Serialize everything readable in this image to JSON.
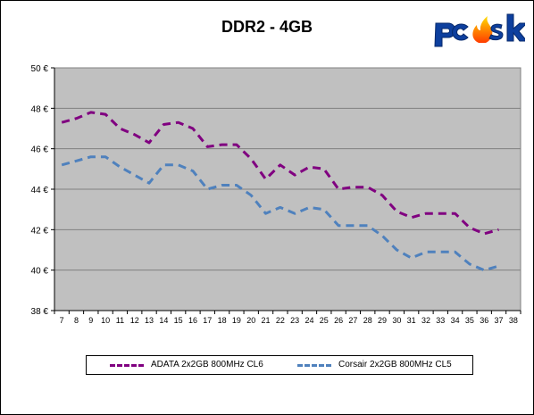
{
  "chart_data": {
    "type": "line",
    "title": "DDR2 - 4GB",
    "xlabel": "",
    "ylabel": "",
    "x": [
      7,
      8,
      9,
      10,
      11,
      12,
      13,
      14,
      15,
      16,
      17,
      18,
      19,
      20,
      21,
      22,
      23,
      24,
      25,
      26,
      27,
      28,
      29,
      30,
      31,
      32,
      33,
      34,
      35,
      36,
      37,
      38
    ],
    "ylim": [
      38,
      50
    ],
    "yticks": [
      "38 €",
      "40 €",
      "42 €",
      "44 €",
      "46 €",
      "48 €",
      "50 €"
    ],
    "ytick_values": [
      38,
      40,
      42,
      44,
      46,
      48,
      50
    ],
    "grid": true,
    "legend_position": "bottom",
    "series": [
      {
        "name": "ADATA 2x2GB 800MHz CL6",
        "color": "#800080",
        "values": [
          47.3,
          47.5,
          47.8,
          47.7,
          47.0,
          46.7,
          46.3,
          47.2,
          47.3,
          47.0,
          46.1,
          46.2,
          46.2,
          45.5,
          44.5,
          45.2,
          44.7,
          45.1,
          45.0,
          44.0,
          44.1,
          44.1,
          43.7,
          42.9,
          42.6,
          42.8,
          42.8,
          42.8,
          42.1,
          41.8,
          42.0,
          null
        ]
      },
      {
        "name": "Corsair 2x2GB 800MHz CL5",
        "color": "#4f81bd",
        "values": [
          45.2,
          45.4,
          45.6,
          45.6,
          45.1,
          44.7,
          44.3,
          45.2,
          45.2,
          44.9,
          44.0,
          44.2,
          44.2,
          43.7,
          42.8,
          43.1,
          42.8,
          43.1,
          43.0,
          42.2,
          42.2,
          42.2,
          41.7,
          41.0,
          40.6,
          40.9,
          40.9,
          40.9,
          40.3,
          40.0,
          40.2,
          null
        ]
      }
    ]
  },
  "logo_text": "pcsk",
  "colors": {
    "plot_background": "#c0c0c0",
    "gridline": "#808080",
    "logo_blue": "#0d3f9e",
    "logo_flame": "#ff6a00"
  }
}
